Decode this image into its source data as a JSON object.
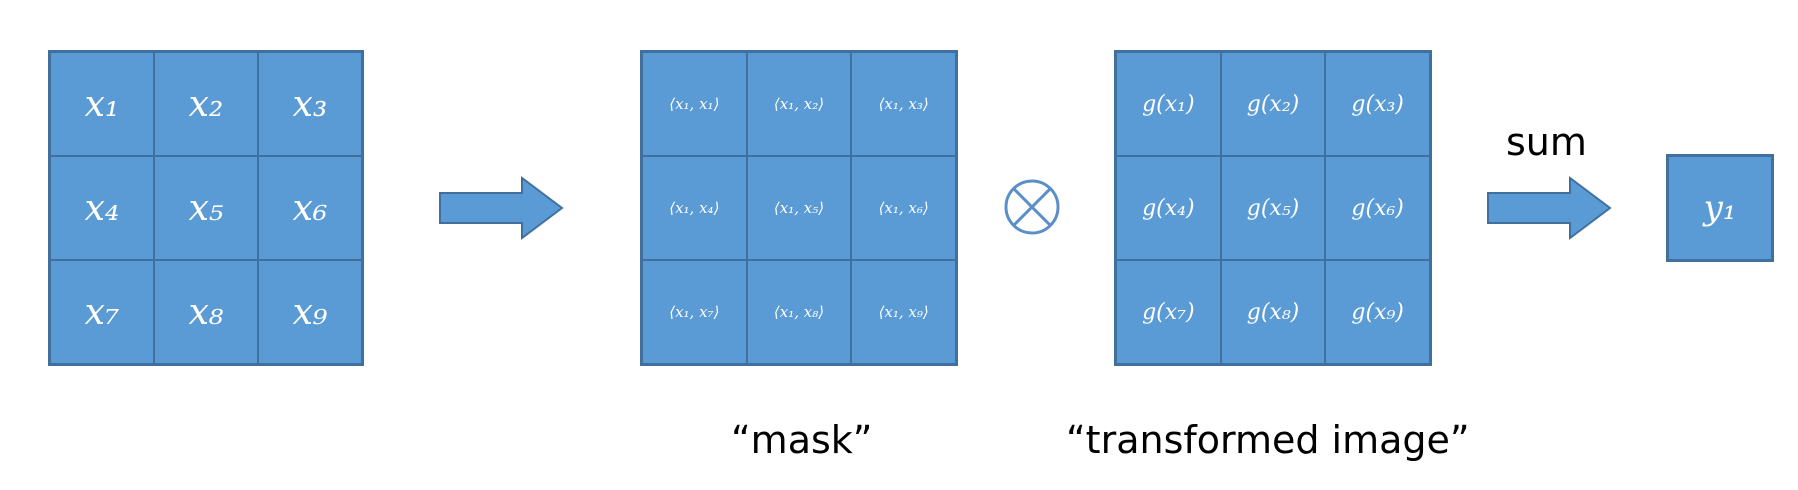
{
  "input_grid": {
    "cells": [
      "x₁",
      "x₂",
      "x₃",
      "x₄",
      "x₅",
      "x₆",
      "x₇",
      "x₈",
      "x₉"
    ]
  },
  "mask_grid": {
    "cells": [
      "⟨x₁, x₁⟩",
      "⟨x₁, x₂⟩",
      "⟨x₁, x₃⟩",
      "⟨x₁, x₄⟩",
      "⟨x₁, x₅⟩",
      "⟨x₁, x₆⟩",
      "⟨x₁, x₇⟩",
      "⟨x₁, x₈⟩",
      "⟨x₁, x₉⟩"
    ],
    "caption": "“mask”"
  },
  "transform_grid": {
    "cells": [
      "g(x₁)",
      "g(x₂)",
      "g(x₃)",
      "g(x₄)",
      "g(x₅)",
      "g(x₆)",
      "g(x₇)",
      "g(x₈)",
      "g(x₉)"
    ],
    "caption": "“transformed image”"
  },
  "operator_icon": "circled-times-icon",
  "sum_label": "sum",
  "output": {
    "value": "y₁"
  },
  "colors": {
    "cell_fill": "#5b9bd5",
    "cell_border": "#41709e",
    "text_on_cell": "#ffffff"
  }
}
